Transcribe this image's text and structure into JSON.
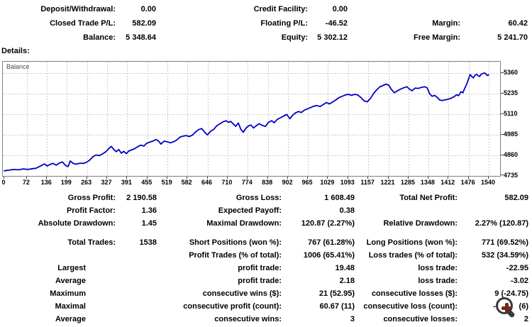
{
  "summary": {
    "rows": [
      {
        "cells": [
          {
            "label": "Deposit/Withdrawal:",
            "value": "0.00"
          },
          {
            "label": "Credit Facility:",
            "value": "0.00"
          },
          null
        ]
      },
      {
        "cells": [
          {
            "label": "Closed Trade P/L:",
            "value": "582.09"
          },
          {
            "label": "Floating P/L:",
            "value": "-46.52"
          },
          {
            "label": "Margin:",
            "value": "60.42"
          }
        ]
      },
      {
        "cells": [
          {
            "label": "Balance:",
            "value": "5 348.64"
          },
          {
            "label": "Equity:",
            "value": "5 302.12"
          },
          {
            "label": "Free Margin:",
            "value": "5 241.70"
          }
        ]
      }
    ]
  },
  "details_label": "Details:",
  "chart_data": {
    "type": "line",
    "title": "Balance",
    "series_label": "Balance",
    "line_color": "#0000c6",
    "grid_color": "#c9c9c9",
    "border_color": "#7f7f7f",
    "legend_position": "top-left",
    "grid": true,
    "x_ticks": [
      0,
      72,
      136,
      199,
      263,
      327,
      391,
      455,
      519,
      582,
      646,
      710,
      774,
      838,
      902,
      965,
      1029,
      1093,
      1157,
      1221,
      1285,
      1348,
      1412,
      1476,
      1540
    ],
    "y_ticks": [
      5360,
      5235,
      5110,
      4985,
      4860,
      4735
    ],
    "xlabel": "",
    "ylabel": "",
    "x_range": [
      0,
      1580
    ],
    "y_range": [
      4735,
      5428
    ],
    "points": [
      [
        0,
        4766
      ],
      [
        15,
        4770
      ],
      [
        30,
        4774
      ],
      [
        45,
        4772
      ],
      [
        60,
        4777
      ],
      [
        75,
        4774
      ],
      [
        90,
        4779
      ],
      [
        100,
        4781
      ],
      [
        110,
        4790
      ],
      [
        120,
        4800
      ],
      [
        128,
        4808
      ],
      [
        136,
        4795
      ],
      [
        145,
        4804
      ],
      [
        155,
        4811
      ],
      [
        165,
        4800
      ],
      [
        175,
        4813
      ],
      [
        185,
        4820
      ],
      [
        195,
        4798
      ],
      [
        203,
        4792
      ],
      [
        210,
        4826
      ],
      [
        218,
        4812
      ],
      [
        228,
        4806
      ],
      [
        240,
        4812
      ],
      [
        252,
        4811
      ],
      [
        262,
        4818
      ],
      [
        272,
        4832
      ],
      [
        282,
        4852
      ],
      [
        292,
        4862
      ],
      [
        302,
        4858
      ],
      [
        312,
        4868
      ],
      [
        322,
        4880
      ],
      [
        332,
        4900
      ],
      [
        340,
        4914
      ],
      [
        348,
        4896
      ],
      [
        356,
        4882
      ],
      [
        364,
        4895
      ],
      [
        372,
        4873
      ],
      [
        380,
        4884
      ],
      [
        388,
        4870
      ],
      [
        396,
        4886
      ],
      [
        404,
        4892
      ],
      [
        414,
        4900
      ],
      [
        424,
        4912
      ],
      [
        434,
        4922
      ],
      [
        444,
        4916
      ],
      [
        452,
        4932
      ],
      [
        462,
        4940
      ],
      [
        472,
        4946
      ],
      [
        482,
        4956
      ],
      [
        490,
        4948
      ],
      [
        498,
        4928
      ],
      [
        508,
        4946
      ],
      [
        518,
        4942
      ],
      [
        528,
        4936
      ],
      [
        538,
        4942
      ],
      [
        548,
        4952
      ],
      [
        558,
        4970
      ],
      [
        568,
        4976
      ],
      [
        578,
        4980
      ],
      [
        588,
        4974
      ],
      [
        598,
        4982
      ],
      [
        608,
        5002
      ],
      [
        618,
        5016
      ],
      [
        628,
        5022
      ],
      [
        636,
        5002
      ],
      [
        646,
        4984
      ],
      [
        656,
        5006
      ],
      [
        666,
        5018
      ],
      [
        676,
        5040
      ],
      [
        686,
        5052
      ],
      [
        696,
        5064
      ],
      [
        706,
        5070
      ],
      [
        712,
        5060
      ],
      [
        720,
        5066
      ],
      [
        728,
        5050
      ],
      [
        736,
        5036
      ],
      [
        744,
        5056
      ],
      [
        752,
        5018
      ],
      [
        760,
        5000
      ],
      [
        768,
        5024
      ],
      [
        776,
        5038
      ],
      [
        784,
        5044
      ],
      [
        792,
        5026
      ],
      [
        800,
        5038
      ],
      [
        810,
        5052
      ],
      [
        820,
        5042
      ],
      [
        830,
        5035
      ],
      [
        840,
        5060
      ],
      [
        850,
        5070
      ],
      [
        858,
        5058
      ],
      [
        868,
        5078
      ],
      [
        878,
        5088
      ],
      [
        888,
        5098
      ],
      [
        898,
        5108
      ],
      [
        908,
        5082
      ],
      [
        916,
        5102
      ],
      [
        926,
        5118
      ],
      [
        936,
        5126
      ],
      [
        944,
        5120
      ],
      [
        954,
        5134
      ],
      [
        964,
        5142
      ],
      [
        974,
        5150
      ],
      [
        984,
        5158
      ],
      [
        994,
        5162
      ],
      [
        1004,
        5156
      ],
      [
        1014,
        5168
      ],
      [
        1024,
        5180
      ],
      [
        1034,
        5172
      ],
      [
        1044,
        5184
      ],
      [
        1054,
        5196
      ],
      [
        1064,
        5210
      ],
      [
        1074,
        5218
      ],
      [
        1084,
        5226
      ],
      [
        1094,
        5230
      ],
      [
        1104,
        5224
      ],
      [
        1114,
        5230
      ],
      [
        1124,
        5226
      ],
      [
        1134,
        5210
      ],
      [
        1144,
        5190
      ],
      [
        1154,
        5185
      ],
      [
        1164,
        5205
      ],
      [
        1174,
        5235
      ],
      [
        1184,
        5258
      ],
      [
        1194,
        5275
      ],
      [
        1204,
        5284
      ],
      [
        1214,
        5292
      ],
      [
        1222,
        5286
      ],
      [
        1230,
        5262
      ],
      [
        1240,
        5240
      ],
      [
        1250,
        5252
      ],
      [
        1260,
        5262
      ],
      [
        1270,
        5270
      ],
      [
        1280,
        5276
      ],
      [
        1288,
        5262
      ],
      [
        1296,
        5252
      ],
      [
        1306,
        5268
      ],
      [
        1316,
        5266
      ],
      [
        1326,
        5272
      ],
      [
        1336,
        5276
      ],
      [
        1344,
        5270
      ],
      [
        1352,
        5234
      ],
      [
        1360,
        5218
      ],
      [
        1368,
        5224
      ],
      [
        1376,
        5212
      ],
      [
        1384,
        5196
      ],
      [
        1392,
        5192
      ],
      [
        1400,
        5196
      ],
      [
        1410,
        5200
      ],
      [
        1420,
        5206
      ],
      [
        1430,
        5216
      ],
      [
        1438,
        5228
      ],
      [
        1444,
        5222
      ],
      [
        1452,
        5246
      ],
      [
        1458,
        5240
      ],
      [
        1464,
        5268
      ],
      [
        1470,
        5292
      ],
      [
        1476,
        5324
      ],
      [
        1481,
        5350
      ],
      [
        1486,
        5338
      ],
      [
        1491,
        5330
      ],
      [
        1496,
        5346
      ],
      [
        1501,
        5352
      ],
      [
        1506,
        5344
      ],
      [
        1511,
        5338
      ],
      [
        1516,
        5352
      ],
      [
        1521,
        5356
      ],
      [
        1526,
        5360
      ],
      [
        1531,
        5354
      ],
      [
        1536,
        5344
      ],
      [
        1540,
        5349
      ]
    ]
  },
  "stats": {
    "rows": [
      {
        "c1": {
          "label": "Gross Profit:",
          "value": "2 190.58"
        },
        "c2": {
          "label": "Gross Loss:",
          "value": "1 608.49"
        },
        "c3": {
          "label": "Total Net Profit:",
          "value": "582.09"
        }
      },
      {
        "c1": {
          "label": "Profit Factor:",
          "value": "1.36"
        },
        "c2": {
          "label": "Expected Payoff:",
          "value": "0.38"
        }
      },
      {
        "c1": {
          "label": "Absolute Drawdown:",
          "value": "1.45"
        },
        "c2": {
          "label": "Maximal Drawdown:",
          "value": "120.87 (2.27%)"
        },
        "c3": {
          "label": "Relative Drawdown:",
          "value": "2.27% (120.87)"
        }
      },
      {
        "gap": true,
        "c1": {
          "label": "Total Trades:",
          "value": "1538"
        },
        "c2": {
          "label": "Short Positions (won %):",
          "value": "767 (61.28%)"
        },
        "c3": {
          "label": "Long Positions (won %):",
          "value": "771 (69.52%)"
        }
      },
      {
        "c2": {
          "label": "Profit Trades (% of total):",
          "value": "1006 (65.41%)"
        },
        "c3": {
          "label": "Loss trades (% of total):",
          "value": "532 (34.59%)"
        }
      },
      {
        "sub": "Largest",
        "c2": {
          "label": "profit trade:",
          "value": "19.48"
        },
        "c3": {
          "label": "loss trade:",
          "value": "-22.95"
        }
      },
      {
        "sub": "Average",
        "c2": {
          "label": "profit trade:",
          "value": "2.18"
        },
        "c3": {
          "label": "loss trade:",
          "value": "-3.02"
        }
      },
      {
        "sub": "Maximum",
        "c2": {
          "label": "consecutive wins ($):",
          "value": "21 (52.95)"
        },
        "c3": {
          "label": "consecutive losses ($):",
          "value": "9 (-24.75)"
        }
      },
      {
        "sub": "Maximal",
        "c2": {
          "label": "consecutive profit (count):",
          "value": "60.67 (11)"
        },
        "c3": {
          "label": "consecutive loss (count):",
          "value": "-6",
          "value2": "(6)",
          "obscured": true
        }
      },
      {
        "sub": "Average",
        "c2": {
          "label": "consecutive wins:",
          "value": "3"
        },
        "c3": {
          "label": "consecutive losses:",
          "value": "2"
        }
      }
    ]
  },
  "cursor_icon": "zoom-in-magnifier",
  "colors": {
    "text": "#000000",
    "chart_line": "#0000c6",
    "chart_grid": "#c9c9c9",
    "chart_border": "#7f7f7f",
    "magnifier_ring": "#3b3b3b",
    "magnifier_plus": "#7a241c"
  }
}
